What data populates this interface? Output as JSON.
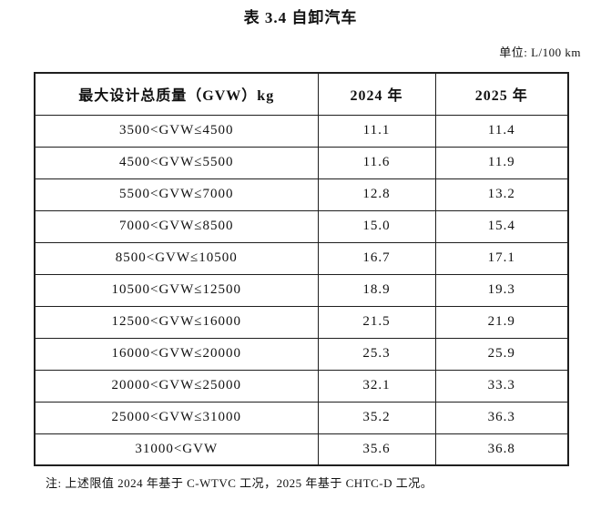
{
  "title": "表 3.4 自卸汽车",
  "unit": "单位: L/100 km",
  "table": {
    "headers": [
      "最大设计总质量（GVW）kg",
      "2024 年",
      "2025 年"
    ],
    "rows": [
      {
        "range": "3500<GVW≤4500",
        "v2024": "11.1",
        "v2025": "11.4"
      },
      {
        "range": "4500<GVW≤5500",
        "v2024": "11.6",
        "v2025": "11.9"
      },
      {
        "range": "5500<GVW≤7000",
        "v2024": "12.8",
        "v2025": "13.2"
      },
      {
        "range": "7000<GVW≤8500",
        "v2024": "15.0",
        "v2025": "15.4"
      },
      {
        "range": "8500<GVW≤10500",
        "v2024": "16.7",
        "v2025": "17.1"
      },
      {
        "range": "10500<GVW≤12500",
        "v2024": "18.9",
        "v2025": "19.3"
      },
      {
        "range": "12500<GVW≤16000",
        "v2024": "21.5",
        "v2025": "21.9"
      },
      {
        "range": "16000<GVW≤20000",
        "v2024": "25.3",
        "v2025": "25.9"
      },
      {
        "range": "20000<GVW≤25000",
        "v2024": "32.1",
        "v2025": "33.3"
      },
      {
        "range": "25000<GVW≤31000",
        "v2024": "35.2",
        "v2025": "36.3"
      },
      {
        "range": "31000<GVW",
        "v2024": "35.6",
        "v2025": "36.8"
      }
    ]
  },
  "note": "注: 上述限值 2024 年基于 C-WTVC 工况，2025 年基于 CHTC-D 工况。"
}
